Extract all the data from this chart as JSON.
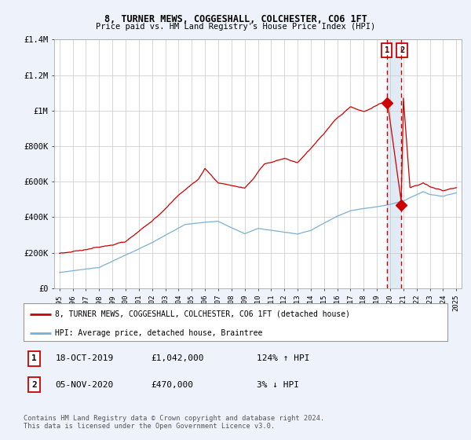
{
  "title": "8, TURNER MEWS, COGGESHALL, COLCHESTER, CO6 1FT",
  "subtitle": "Price paid vs. HM Land Registry's House Price Index (HPI)",
  "red_label": "8, TURNER MEWS, COGGESHALL, COLCHESTER, CO6 1FT (detached house)",
  "blue_label": "HPI: Average price, detached house, Braintree",
  "point1_date": "18-OCT-2019",
  "point1_price": "£1,042,000",
  "point1_hpi": "124% ↑ HPI",
  "point1_year": 2019.79,
  "point1_value": 1042000,
  "point2_date": "05-NOV-2020",
  "point2_price": "£470,000",
  "point2_hpi": "3% ↓ HPI",
  "point2_year": 2020.85,
  "point2_value": 470000,
  "footer": "Contains HM Land Registry data © Crown copyright and database right 2024.\nThis data is licensed under the Open Government Licence v3.0.",
  "ylim": [
    0,
    1400000
  ],
  "yticks": [
    0,
    200000,
    400000,
    600000,
    800000,
    1000000,
    1200000,
    1400000
  ],
  "ytick_labels": [
    "£0",
    "£200K",
    "£400K",
    "£600K",
    "£800K",
    "£1M",
    "£1.2M",
    "£1.4M"
  ],
  "background_color": "#eef2fb",
  "plot_bg": "#ffffff",
  "red_color": "#cc0000",
  "blue_color": "#7ab0d4",
  "grid_color": "#c8c8c8",
  "dashed_line_color": "#cc0000",
  "shade_color": "#dce8f5",
  "marker_color": "#cc0000",
  "xlim_left": 1994.6,
  "xlim_right": 2025.4
}
